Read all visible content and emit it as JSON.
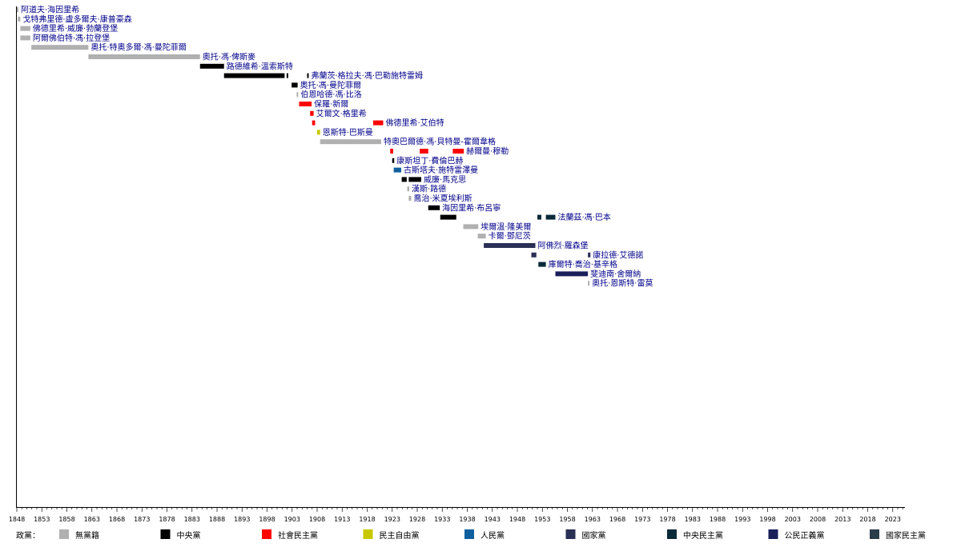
{
  "chart_data": {
    "type": "timeline",
    "xlim": [
      1848,
      2026
    ],
    "x_ticks": [
      1848,
      1853,
      1858,
      1863,
      1868,
      1873,
      1878,
      1883,
      1888,
      1893,
      1898,
      1903,
      1908,
      1913,
      1918,
      1923,
      1928,
      1933,
      1938,
      1943,
      1948,
      1953,
      1958,
      1963,
      1968,
      1973,
      1978,
      1983,
      1988,
      1993,
      1998,
      2003,
      2008,
      2013,
      2018,
      2023
    ],
    "parties": {
      "none": {
        "label": "無黨籍",
        "color": "#b0b0b0"
      },
      "central": {
        "label": "中央黨",
        "color": "#000000"
      },
      "social_democrat": {
        "label": "社會民主黨",
        "color": "#ff0000"
      },
      "liberal": {
        "label": "民主自由黨",
        "color": "#c8c800"
      },
      "people": {
        "label": "人民黨",
        "color": "#1060a0"
      },
      "national": {
        "label": "國家黨",
        "color": "#2a2f55"
      },
      "center_democrat": {
        "label": "中央民主黨",
        "color": "#0a2a3a"
      },
      "civic": {
        "label": "公民正義黨",
        "color": "#1a1f5a"
      },
      "national_democrat": {
        "label": "國家民主黨",
        "color": "#2a3d4a"
      }
    },
    "legend_title": "政黨：",
    "legend_order": [
      "none",
      "central",
      "social_democrat",
      "liberal",
      "people",
      "national",
      "center_democrat",
      "civic",
      "national_democrat"
    ],
    "rows": [
      {
        "name": "阿道夫·海因里希",
        "terms": [
          {
            "start": 1848.0,
            "end": 1848.3,
            "party": "none"
          }
        ]
      },
      {
        "name": "戈特弗里德·盧多爾夫·康普豪森",
        "terms": [
          {
            "start": 1848.2,
            "end": 1848.7,
            "party": "none"
          }
        ]
      },
      {
        "name": "佛德里希·威廉·勃蘭登堡",
        "terms": [
          {
            "start": 1848.7,
            "end": 1850.7,
            "party": "none"
          }
        ]
      },
      {
        "name": "阿爾佛伯特·馮·拉登堡",
        "terms": [
          {
            "start": 1848.7,
            "end": 1850.7,
            "party": "none"
          }
        ]
      },
      {
        "name": "奧托·特奧多爾·馮·曼陀菲爾",
        "terms": [
          {
            "start": 1850.9,
            "end": 1862.3,
            "party": "none"
          }
        ]
      },
      {
        "name": "奧托·馮·俾斯麥",
        "terms": [
          {
            "start": 1862.3,
            "end": 1884.6,
            "party": "none"
          }
        ]
      },
      {
        "name": "路德維希·溫索斯特",
        "terms": [
          {
            "start": 1884.6,
            "end": 1889.4,
            "party": "central"
          }
        ]
      },
      {
        "name": "弗蘭茨·格拉夫·馮·巴勒施特雷姆",
        "terms": [
          {
            "start": 1889.4,
            "end": 1901.5,
            "party": "central"
          },
          {
            "start": 1901.9,
            "end": 1902.2,
            "party": "central"
          },
          {
            "start": 1906.0,
            "end": 1906.3,
            "party": "central"
          }
        ]
      },
      {
        "name": "奧托·馮·曼陀菲爾",
        "terms": [
          {
            "start": 1902.9,
            "end": 1904.1,
            "party": "central"
          }
        ]
      },
      {
        "name": "伯恩哈德·馮·比洛",
        "terms": [
          {
            "start": 1903.9,
            "end": 1904.2,
            "party": "none"
          }
        ]
      },
      {
        "name": "保羅·新爾",
        "terms": [
          {
            "start": 1904.4,
            "end": 1906.9,
            "party": "social_democrat"
          }
        ]
      },
      {
        "name": "艾爾文·格里希",
        "terms": [
          {
            "start": 1906.6,
            "end": 1907.3,
            "party": "social_democrat"
          }
        ]
      },
      {
        "name": "佛德里希·艾伯特",
        "terms": [
          {
            "start": 1907.0,
            "end": 1907.6,
            "party": "social_democrat"
          },
          {
            "start": 1919.2,
            "end": 1921.2,
            "party": "social_democrat"
          }
        ]
      },
      {
        "name": "恩斯特·巴斯曼",
        "terms": [
          {
            "start": 1908.0,
            "end": 1908.6,
            "party": "liberal"
          }
        ]
      },
      {
        "name": "特奧巴爾德·馮·貝特曼-霍爾韋格",
        "terms": [
          {
            "start": 1908.6,
            "end": 1920.8,
            "party": "none"
          }
        ]
      },
      {
        "name": "赫爾曼·穆勒",
        "terms": [
          {
            "start": 1922.6,
            "end": 1923.2,
            "party": "social_democrat"
          },
          {
            "start": 1928.5,
            "end": 1930.2,
            "party": "social_democrat"
          },
          {
            "start": 1935.1,
            "end": 1937.3,
            "party": "social_democrat"
          }
        ]
      },
      {
        "name": "康斯坦丁·費倫巴赫",
        "terms": [
          {
            "start": 1923.0,
            "end": 1923.4,
            "party": "central"
          }
        ]
      },
      {
        "name": "古斯塔夫·施特雷澤曼",
        "terms": [
          {
            "start": 1923.3,
            "end": 1924.8,
            "party": "people"
          }
        ]
      },
      {
        "name": "威廉·馬克思",
        "terms": [
          {
            "start": 1924.9,
            "end": 1925.9,
            "party": "central"
          },
          {
            "start": 1926.3,
            "end": 1928.8,
            "party": "central"
          }
        ]
      },
      {
        "name": "漢斯·路德",
        "terms": [
          {
            "start": 1926.0,
            "end": 1926.4,
            "party": "none"
          }
        ]
      },
      {
        "name": "喬治·米夏埃利斯",
        "terms": [
          {
            "start": 1926.3,
            "end": 1926.8,
            "party": "none"
          }
        ]
      },
      {
        "name": "海因里希·布呂寧",
        "terms": [
          {
            "start": 1930.2,
            "end": 1932.5,
            "party": "central"
          }
        ]
      },
      {
        "name": "法蘭茲·馮·巴本",
        "terms": [
          {
            "start": 1932.6,
            "end": 1935.8,
            "party": "central"
          },
          {
            "start": 1952.0,
            "end": 1952.8,
            "party": "center_democrat"
          },
          {
            "start": 1953.7,
            "end": 1955.6,
            "party": "center_democrat"
          }
        ]
      },
      {
        "name": "埃爾溫·隆美爾",
        "terms": [
          {
            "start": 1937.2,
            "end": 1940.2,
            "party": "none"
          }
        ]
      },
      {
        "name": "卡爾·鄧尼茨",
        "terms": [
          {
            "start": 1940.1,
            "end": 1941.7,
            "party": "none"
          }
        ]
      },
      {
        "name": "阿佛烈·羅森堡",
        "terms": [
          {
            "start": 1941.3,
            "end": 1951.6,
            "party": "national"
          }
        ]
      },
      {
        "name": "康拉德·艾德諾",
        "terms": [
          {
            "start": 1950.8,
            "end": 1951.8,
            "party": "national"
          },
          {
            "start": 1962.1,
            "end": 1962.6,
            "party": "national"
          }
        ]
      },
      {
        "name": "庫爾特·喬治·基辛格",
        "terms": [
          {
            "start": 1952.2,
            "end": 1953.7,
            "party": "center_democrat"
          }
        ]
      },
      {
        "name": "斐迪南·舍爾納",
        "terms": [
          {
            "start": 1955.6,
            "end": 1962.1,
            "party": "civic"
          }
        ]
      },
      {
        "name": "奧托·恩斯特·雷莫",
        "terms": [
          {
            "start": 1962.1,
            "end": 1962.4,
            "party": "none"
          }
        ]
      }
    ]
  }
}
